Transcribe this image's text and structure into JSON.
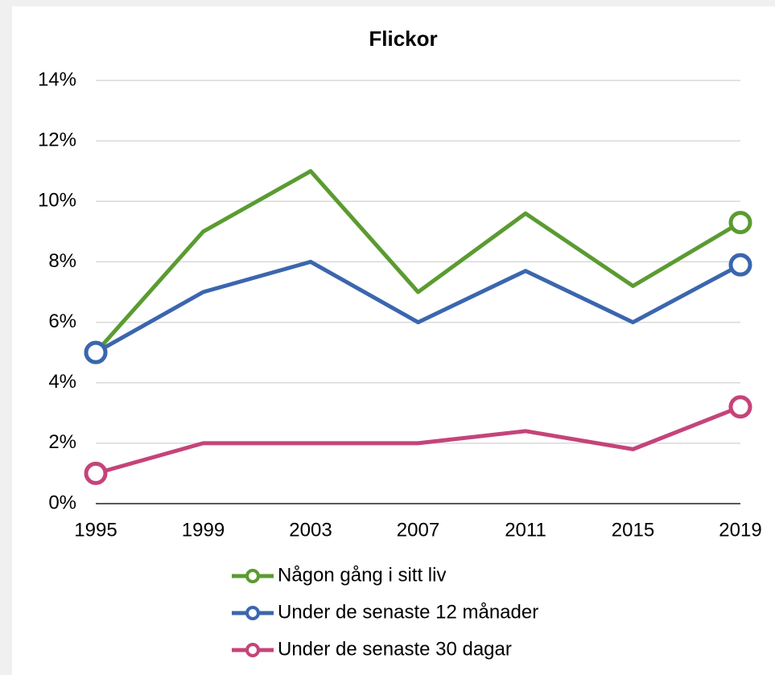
{
  "chart_data": {
    "type": "line",
    "title": "Flickor",
    "categories": [
      "1995",
      "1999",
      "2003",
      "2007",
      "2011",
      "2015",
      "2019"
    ],
    "series": [
      {
        "name": "Någon gång i sitt liv",
        "color": "#5b9b31",
        "values": [
          5.0,
          9.0,
          11.0,
          7.0,
          9.6,
          7.2,
          9.3
        ]
      },
      {
        "name": "Under de senaste 12 månader",
        "color": "#3b66ae",
        "values": [
          5.0,
          7.0,
          8.0,
          6.0,
          7.7,
          6.0,
          7.9
        ]
      },
      {
        "name": "Under de senaste 30 dagar",
        "color": "#c4447a",
        "values": [
          1.0,
          2.0,
          2.0,
          2.0,
          2.4,
          1.8,
          3.2
        ]
      }
    ],
    "ylim": [
      0,
      14
    ],
    "yticks": [
      {
        "value": 0,
        "label": "0%"
      },
      {
        "value": 2,
        "label": "2%"
      },
      {
        "value": 4,
        "label": "4%"
      },
      {
        "value": 6,
        "label": "6%"
      },
      {
        "value": 8,
        "label": "8%"
      },
      {
        "value": 10,
        "label": "10%"
      },
      {
        "value": 12,
        "label": "12%"
      },
      {
        "value": 14,
        "label": "14%"
      }
    ],
    "grid": true,
    "legend": "bottom"
  }
}
